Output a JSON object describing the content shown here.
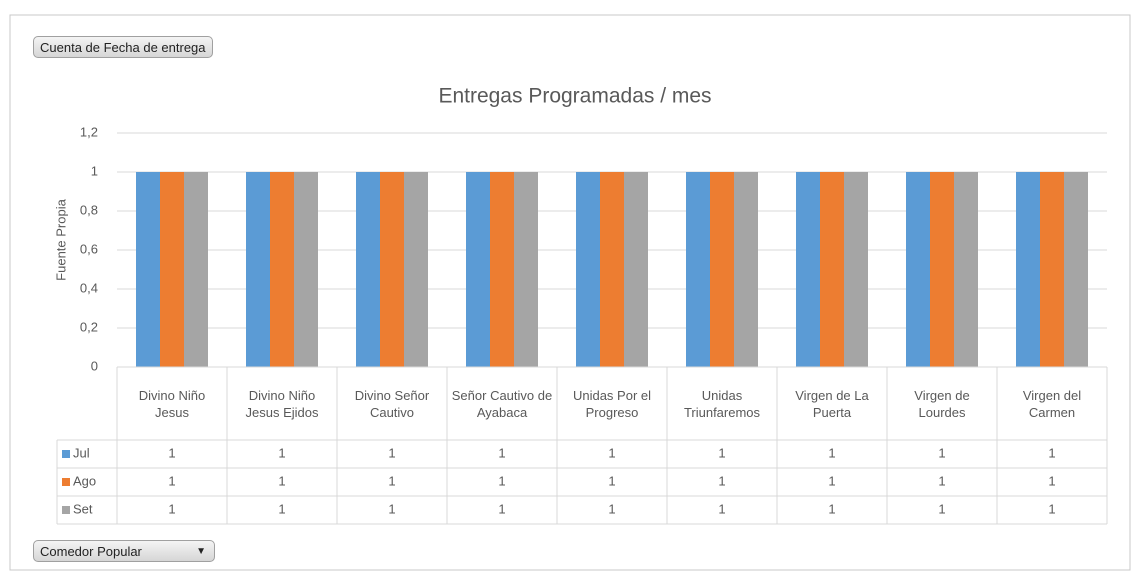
{
  "value_field_button": "Cuenta de Fecha de entrega",
  "axis_field_button": "Comedor Popular",
  "chart_data": {
    "type": "bar",
    "title": "Entregas Programadas / mes",
    "y_label": "Fuente Propia",
    "categories": [
      "Divino Niño Jesus",
      "Divino Niño Jesus Ejidos",
      "Divino Señor Cautivo",
      "Señor Cautivo de Ayabaca",
      "Unidas Por el Progreso",
      "Unidas Triunfaremos",
      "Virgen de La Puerta",
      "Virgen de Lourdes",
      "Virgen del Carmen"
    ],
    "series": [
      {
        "name": "Jul",
        "color": "#5b9bd5",
        "values": [
          1,
          1,
          1,
          1,
          1,
          1,
          1,
          1,
          1
        ]
      },
      {
        "name": "Ago",
        "color": "#ed7d31",
        "values": [
          1,
          1,
          1,
          1,
          1,
          1,
          1,
          1,
          1
        ]
      },
      {
        "name": "Set",
        "color": "#a5a5a5",
        "values": [
          1,
          1,
          1,
          1,
          1,
          1,
          1,
          1,
          1
        ]
      }
    ],
    "ylim": [
      0,
      1.2
    ],
    "yticks": [
      0,
      {
        "value": 0.2,
        "label": "0,2"
      },
      {
        "value": 0.4,
        "label": "0,4"
      },
      {
        "value": 0.6,
        "label": "0,6"
      },
      {
        "value": 0.8,
        "label": "0,8"
      },
      1,
      {
        "value": 1.2,
        "label": "1,2"
      }
    ],
    "grid": true,
    "data_table": true
  }
}
